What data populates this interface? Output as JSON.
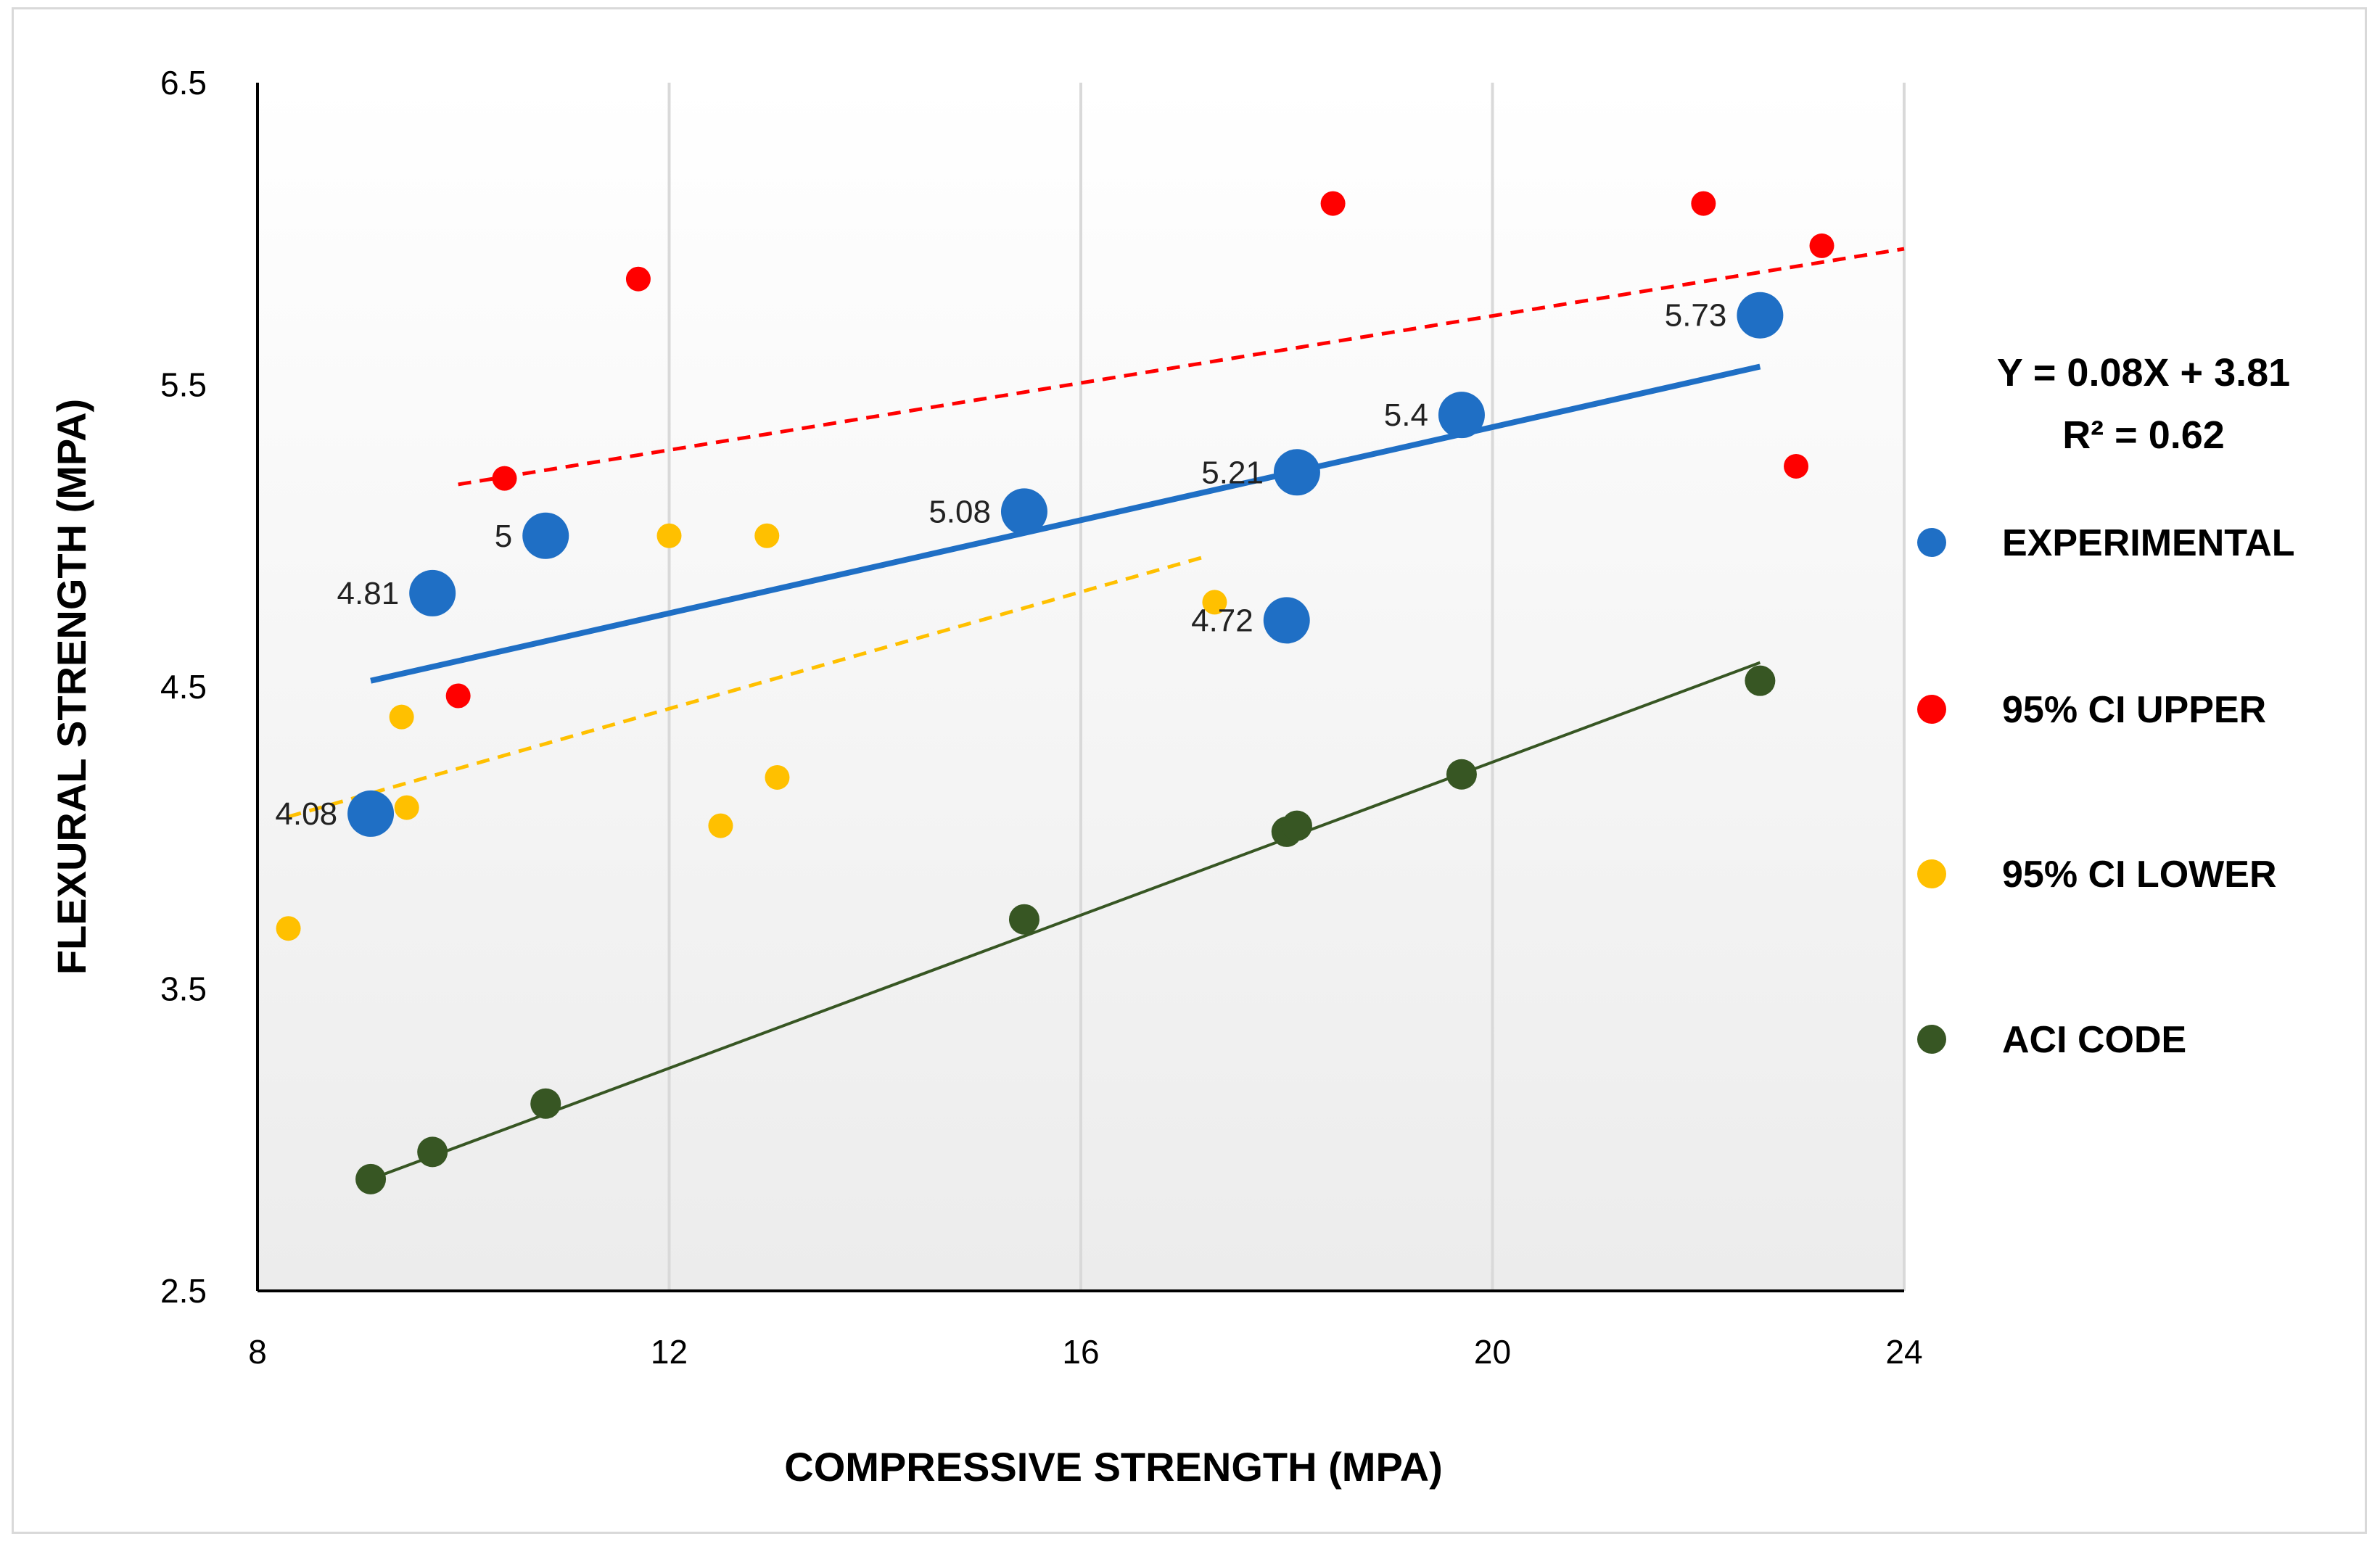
{
  "chart_data": {
    "type": "scatter",
    "xlabel": "COMPRESSIVE STRENGTH (MPA)",
    "ylabel": "FLEXURAL STRENGTH (MPA)",
    "xlim": [
      8,
      24
    ],
    "ylim": [
      2.5,
      6.5
    ],
    "xticks": [
      8,
      12,
      16,
      20,
      24
    ],
    "yticks": [
      2.5,
      3.5,
      4.5,
      5.5,
      6.5
    ],
    "ytick_labels": [
      "2.5",
      "3.5",
      "4.5",
      "5.5",
      "6.5"
    ],
    "grid": "vertical",
    "legend_position": "right",
    "equation": "Y = 0.08X + 3.81",
    "r_squared": "R² = 0.62",
    "series": [
      {
        "name": "EXPERIMENTAL",
        "color": "#1f6fc5",
        "marker": "large-circle",
        "points": [
          {
            "x": 9.1,
            "y": 4.08,
            "label": "4.08"
          },
          {
            "x": 9.7,
            "y": 4.81,
            "label": "4.81"
          },
          {
            "x": 10.8,
            "y": 5.0,
            "label": "5"
          },
          {
            "x": 15.45,
            "y": 5.08,
            "label": "5.08"
          },
          {
            "x": 18.0,
            "y": 4.72,
            "label": "4.72"
          },
          {
            "x": 18.1,
            "y": 5.21,
            "label": "5.21"
          },
          {
            "x": 19.7,
            "y": 5.4,
            "label": "5.4"
          },
          {
            "x": 22.6,
            "y": 5.73,
            "label": "5.73"
          }
        ]
      },
      {
        "name": "95% CI UPPER",
        "color": "#ff0000",
        "marker": "small-circle",
        "points": [
          {
            "x": 9.95,
            "y": 4.47
          },
          {
            "x": 10.4,
            "y": 5.19
          },
          {
            "x": 11.7,
            "y": 5.85
          },
          {
            "x": 18.45,
            "y": 6.1
          },
          {
            "x": 22.05,
            "y": 6.1
          },
          {
            "x": 22.95,
            "y": 5.23
          },
          {
            "x": 23.2,
            "y": 5.96
          }
        ]
      },
      {
        "name": "95% CI LOWER",
        "color": "#ffc000",
        "marker": "small-circle",
        "points": [
          {
            "x": 8.3,
            "y": 3.7
          },
          {
            "x": 9.4,
            "y": 4.4
          },
          {
            "x": 9.45,
            "y": 4.1
          },
          {
            "x": 12.0,
            "y": 5.0
          },
          {
            "x": 12.5,
            "y": 4.04
          },
          {
            "x": 12.95,
            "y": 5.0
          },
          {
            "x": 13.05,
            "y": 4.2
          },
          {
            "x": 17.3,
            "y": 4.78
          }
        ]
      },
      {
        "name": "ACI CODE",
        "color": "#375623",
        "marker": "medium-circle",
        "points": [
          {
            "x": 9.1,
            "y": 2.87
          },
          {
            "x": 9.7,
            "y": 2.96
          },
          {
            "x": 10.8,
            "y": 3.12
          },
          {
            "x": 15.45,
            "y": 3.73
          },
          {
            "x": 18.0,
            "y": 4.02
          },
          {
            "x": 18.1,
            "y": 4.04
          },
          {
            "x": 19.7,
            "y": 4.21
          },
          {
            "x": 22.6,
            "y": 4.52
          }
        ]
      }
    ],
    "trendlines": [
      {
        "series": "EXPERIMENTAL",
        "color": "#1f6fc5",
        "style": "solid",
        "width": "thick",
        "x": [
          9.1,
          22.6
        ],
        "y": [
          4.52,
          5.56
        ]
      },
      {
        "series": "95% CI UPPER",
        "color": "#ff0000",
        "style": "dashed",
        "width": "medium",
        "x": [
          9.95,
          24.0
        ],
        "y": [
          5.17,
          5.95
        ]
      },
      {
        "series": "95% CI LOWER",
        "color": "#ffc000",
        "style": "dashed",
        "width": "medium",
        "x": [
          8.3,
          17.2
        ],
        "y": [
          4.07,
          4.93
        ]
      },
      {
        "series": "ACI CODE",
        "color": "#375623",
        "style": "solid",
        "width": "thin",
        "x": [
          9.1,
          22.6
        ],
        "y": [
          2.87,
          4.58
        ]
      }
    ]
  }
}
